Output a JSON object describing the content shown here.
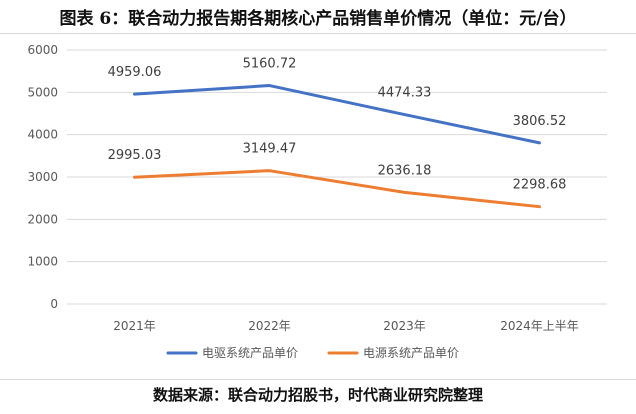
{
  "title": "图表 6：联合动力报告期各期核心产品销售单价情况（单位：元/台）",
  "source": "数据来源：联合动力招股书，时代商业研究院整理",
  "colors": {
    "series1": "#4472c4",
    "series2": "#ed7d31",
    "grid": "#d9d9d9",
    "text": "#595959",
    "labels": "#404040"
  },
  "chart_data": {
    "type": "line",
    "categories": [
      "2021年",
      "2022年",
      "2023年",
      "2024年上半年"
    ],
    "series": [
      {
        "name": "电驱系统产品单价",
        "values": [
          4959.06,
          5160.72,
          4474.33,
          3806.52
        ],
        "labels": [
          "4959.06",
          "5160.72",
          "4474.33",
          "3806.52"
        ]
      },
      {
        "name": "电源系统产品单价",
        "values": [
          2995.03,
          3149.47,
          2636.18,
          2298.68
        ],
        "labels": [
          "2995.03",
          "3149.47",
          "2636.18",
          "2298.68"
        ]
      }
    ],
    "ylim": [
      0,
      6000
    ],
    "yticks": [
      0,
      1000,
      2000,
      3000,
      4000,
      5000,
      6000
    ],
    "grid": true,
    "legend": "bottom"
  }
}
